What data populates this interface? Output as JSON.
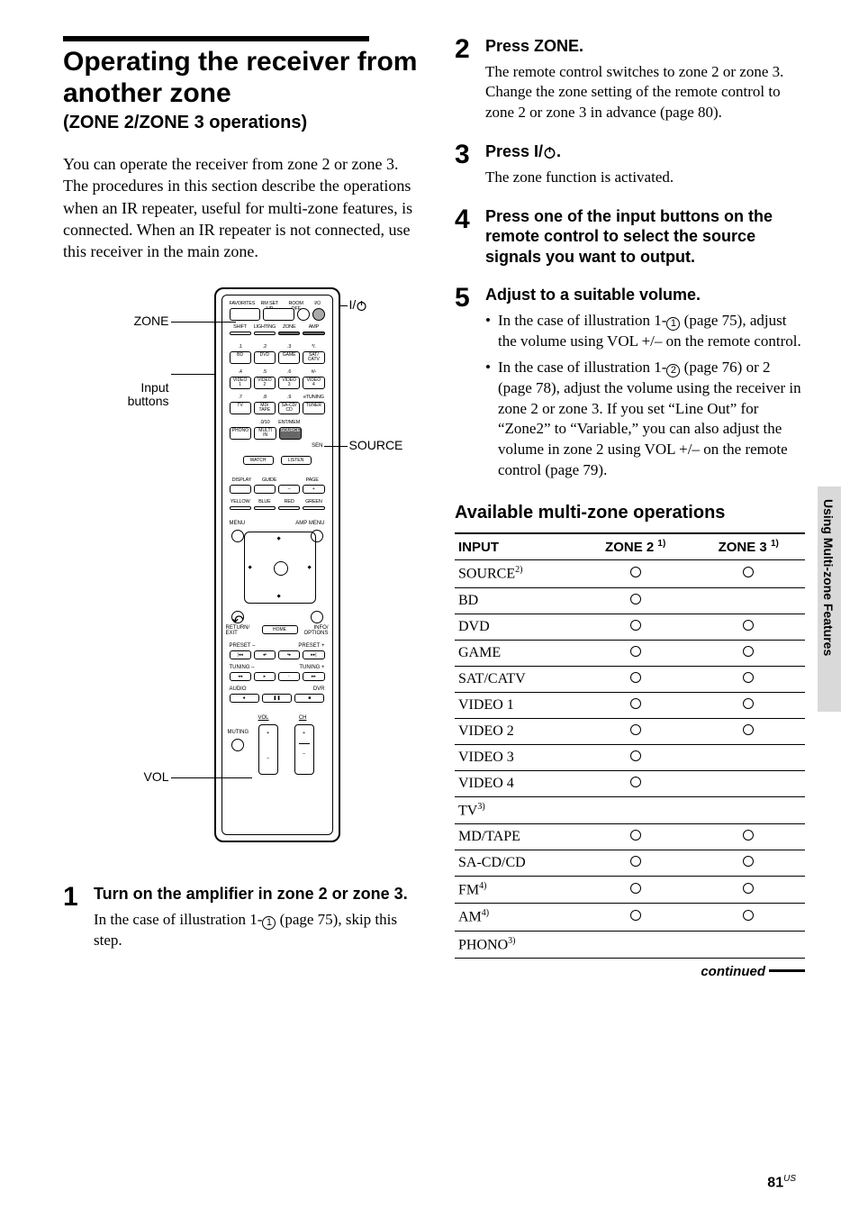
{
  "title": "Operating the receiver from another zone",
  "subtitle": "(ZONE 2/ZONE 3 operations)",
  "intro": "You can operate the receiver from zone 2 or zone 3. The procedures in this section describe the operations when an IR repeater, useful for multi-zone features, is connected. When an IR repeater is not connected, use this receiver in the main zone.",
  "remote": {
    "callouts": {
      "zone": "ZONE",
      "input": "Input\nbuttons",
      "vol": "VOL",
      "power": "I/",
      "source": "SOURCE"
    },
    "top_labels": [
      "FAVORITES",
      "RM SET UP",
      "ROOM OFF"
    ],
    "row2_labels": [
      "SHIFT",
      "LIGHTING",
      "ZONE",
      "AMP"
    ],
    "num_row1_sup": [
      ".1",
      ".2",
      ".3",
      "*/."
    ],
    "num_row1": [
      "BD",
      "DVD",
      "GAME",
      "SAT/\nCATV"
    ],
    "num_row2_sup": [
      ".4",
      ".5",
      ".6",
      "#/-"
    ],
    "num_row2": [
      "VIDEO\n1",
      "VIDEO\n2",
      "VIDEO\n3",
      "VIDEO\n4"
    ],
    "num_row3_sup": [
      ".7",
      ".8",
      ".9",
      "eTUNING"
    ],
    "num_row3": [
      "TV",
      "MD/\nTAPE",
      "SA-CD/\nCD",
      "TUNER"
    ],
    "num_row4_sup": [
      "",
      ".0/10",
      "ENT/MEM",
      ""
    ],
    "num_row4": [
      "PHONO",
      "MULTI\nIN",
      "SOURCE",
      ""
    ],
    "sen": "SEN",
    "watch_listen": [
      "WATCH",
      "LISTEN"
    ],
    "disp_row_top": [
      "DISPLAY",
      "GUIDE",
      "",
      "PAGE"
    ],
    "color_row": [
      "YELLOW",
      "BLUE",
      "RED",
      "GREEN"
    ],
    "menu_left": "MENU",
    "menu_right": "AMP MENU",
    "return": "RETURN/\nEXIT",
    "home": "HOME",
    "info": "INFO/\nOPTIONS",
    "preset_minus": "PRESET –",
    "preset_plus": "PRESET +",
    "tuning_minus": "TUNING –",
    "tuning_plus": "TUNING +",
    "audio": "AUDIO",
    "dvr": "DVR",
    "vol_label": "VOL",
    "ch_label": "CH",
    "muting": "MUTING"
  },
  "steps": [
    {
      "n": "1",
      "head": "Turn on the amplifier in zone 2 or zone 3.",
      "text_pre": "In the case of illustration 1-",
      "circ": "1",
      "text_post": " (page 75), skip this step."
    },
    {
      "n": "2",
      "head": "Press ZONE.",
      "text": "The remote control switches to zone 2 or zone 3. Change the zone setting of the remote control to zone 2 or zone 3 in advance (page 80)."
    },
    {
      "n": "3",
      "head_pre": "Press I/",
      "head_post": ".",
      "text": "The zone function is activated."
    },
    {
      "n": "4",
      "head": "Press one of the input buttons on the remote control to select the source signals you want to output."
    },
    {
      "n": "5",
      "head": "Adjust to a suitable volume.",
      "bullets": [
        {
          "pre": "In the case of illustration 1-",
          "circ": "1",
          "post": " (page 75), adjust the volume using VOL +/– on the remote control."
        },
        {
          "pre": "In the case of illustration 1-",
          "circ": "2",
          "post": " (page 76) or 2 (page 78), adjust the volume using the receiver in zone 2 or zone 3. If you set “Line Out” for “Zone2” to “Variable,” you can also adjust the volume in zone 2 using VOL +/– on the remote control (page 79)."
        }
      ]
    }
  ],
  "table": {
    "title": "Available multi-zone operations",
    "headers": {
      "input": "INPUT",
      "z2": "ZONE 2",
      "z2_sup": "1)",
      "z3": "ZONE 3",
      "z3_sup": "1)"
    },
    "rows": [
      {
        "label": "SOURCE",
        "sup": "2)",
        "z2": true,
        "z3": true
      },
      {
        "label": "BD",
        "z2": true,
        "z3": false
      },
      {
        "label": "DVD",
        "z2": true,
        "z3": true
      },
      {
        "label": "GAME",
        "z2": true,
        "z3": true
      },
      {
        "label": "SAT/CATV",
        "z2": true,
        "z3": true
      },
      {
        "label": "VIDEO 1",
        "z2": true,
        "z3": true
      },
      {
        "label": "VIDEO 2",
        "z2": true,
        "z3": true
      },
      {
        "label": "VIDEO 3",
        "z2": true,
        "z3": false
      },
      {
        "label": "VIDEO 4",
        "z2": true,
        "z3": false
      },
      {
        "label": "TV",
        "sup": "3)",
        "z2": false,
        "z3": false
      },
      {
        "label": "MD/TAPE",
        "z2": true,
        "z3": true
      },
      {
        "label": "SA-CD/CD",
        "z2": true,
        "z3": true
      },
      {
        "label": "FM",
        "sup": "4)",
        "z2": true,
        "z3": true
      },
      {
        "label": "AM",
        "sup": "4)",
        "z2": true,
        "z3": true
      },
      {
        "label": "PHONO",
        "sup": "3)",
        "z2": false,
        "z3": false
      }
    ],
    "continued": "continued"
  },
  "side_tab": "Using Multi-zone Features",
  "page_number": "81",
  "page_suffix": "US"
}
